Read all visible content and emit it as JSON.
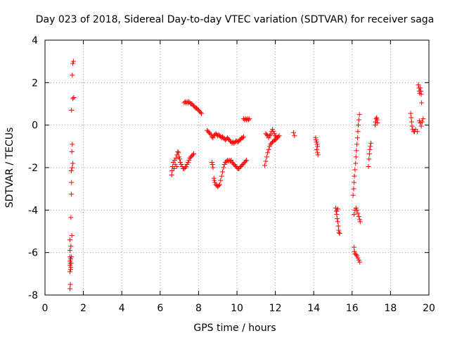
{
  "chart_data": {
    "type": "scatter",
    "title": "Day 023 of 2018, Sidereal Day-to-day VTEC variation (SDTVAR) for receiver saga",
    "xlabel": "GPS time / hours",
    "ylabel": "SDTVAR / TECUs",
    "xlim": [
      0,
      20
    ],
    "ylim": [
      -8,
      4
    ],
    "xticks": [
      0,
      2,
      4,
      6,
      8,
      10,
      12,
      14,
      16,
      18,
      20
    ],
    "yticks": [
      -8,
      -6,
      -4,
      -2,
      0,
      2,
      4
    ],
    "xtick_labels": [
      "0",
      "2",
      "4",
      "6",
      "8",
      "10",
      "12",
      "14",
      "16",
      "18",
      "20"
    ],
    "ytick_labels": [
      "-8",
      "-6",
      "-4",
      "-2",
      "0",
      "2",
      "4"
    ],
    "grid": true,
    "marker": "+",
    "series": [
      {
        "name": "SDTVAR",
        "color": "#ff0000",
        "points": [
          [
            1.3,
            -7.7
          ],
          [
            1.32,
            -7.5
          ],
          [
            1.3,
            -6.9
          ],
          [
            1.33,
            -6.8
          ],
          [
            1.35,
            -6.7
          ],
          [
            1.3,
            -6.6
          ],
          [
            1.32,
            -6.5
          ],
          [
            1.36,
            -6.5
          ],
          [
            1.3,
            -6.4
          ],
          [
            1.34,
            -6.3
          ],
          [
            1.3,
            -6.2
          ],
          [
            1.38,
            -6.2
          ],
          [
            1.3,
            -5.9
          ],
          [
            1.35,
            -5.7
          ],
          [
            1.3,
            -5.4
          ],
          [
            1.4,
            -5.2
          ],
          [
            1.35,
            -4.35
          ],
          [
            1.37,
            -3.25
          ],
          [
            1.38,
            -2.7
          ],
          [
            1.37,
            -2.15
          ],
          [
            1.42,
            -2.0
          ],
          [
            1.45,
            -1.8
          ],
          [
            1.4,
            -1.25
          ],
          [
            1.42,
            -0.9
          ],
          [
            1.38,
            0.7
          ],
          [
            1.45,
            1.25
          ],
          [
            1.5,
            1.3
          ],
          [
            1.42,
            2.35
          ],
          [
            1.45,
            2.9
          ],
          [
            1.48,
            3.0
          ],
          [
            6.6,
            -2.35
          ],
          [
            6.62,
            -2.15
          ],
          [
            6.65,
            -1.95
          ],
          [
            6.68,
            -1.75
          ],
          [
            6.72,
            -2.05
          ],
          [
            6.75,
            -1.65
          ],
          [
            6.78,
            -1.85
          ],
          [
            6.82,
            -1.55
          ],
          [
            6.85,
            -1.95
          ],
          [
            6.88,
            -1.4
          ],
          [
            6.92,
            -1.25
          ],
          [
            6.95,
            -1.3
          ],
          [
            6.98,
            -1.5
          ],
          [
            7.02,
            -1.6
          ],
          [
            7.05,
            -1.75
          ],
          [
            7.1,
            -1.85
          ],
          [
            7.15,
            -1.95
          ],
          [
            7.2,
            -2.05
          ],
          [
            7.25,
            -2.05
          ],
          [
            7.3,
            -2.0
          ],
          [
            7.35,
            -1.95
          ],
          [
            7.4,
            -1.85
          ],
          [
            7.45,
            -1.75
          ],
          [
            7.5,
            -1.65
          ],
          [
            7.55,
            -1.55
          ],
          [
            7.6,
            -1.5
          ],
          [
            7.65,
            -1.45
          ],
          [
            7.7,
            -1.4
          ],
          [
            7.75,
            -1.35
          ],
          [
            7.25,
            1.05
          ],
          [
            7.3,
            1.1
          ],
          [
            7.35,
            1.05
          ],
          [
            7.4,
            1.1
          ],
          [
            7.45,
            1.05
          ],
          [
            7.5,
            1.1
          ],
          [
            7.55,
            1.05
          ],
          [
            7.6,
            1.0
          ],
          [
            7.65,
            1.0
          ],
          [
            7.7,
            0.95
          ],
          [
            7.75,
            0.9
          ],
          [
            7.8,
            0.85
          ],
          [
            7.85,
            0.8
          ],
          [
            7.9,
            0.8
          ],
          [
            7.95,
            0.75
          ],
          [
            8.0,
            0.7
          ],
          [
            8.05,
            0.65
          ],
          [
            8.1,
            0.6
          ],
          [
            8.15,
            0.55
          ],
          [
            8.45,
            -0.25
          ],
          [
            8.5,
            -0.3
          ],
          [
            8.55,
            -0.35
          ],
          [
            8.6,
            -0.4
          ],
          [
            8.65,
            -0.45
          ],
          [
            8.7,
            -0.55
          ],
          [
            8.75,
            -0.6
          ],
          [
            8.8,
            -0.5
          ],
          [
            8.85,
            -0.45
          ],
          [
            8.9,
            -0.4
          ],
          [
            8.95,
            -0.45
          ],
          [
            9.0,
            -0.5
          ],
          [
            9.05,
            -0.45
          ],
          [
            9.1,
            -0.5
          ],
          [
            9.15,
            -0.55
          ],
          [
            9.2,
            -0.6
          ],
          [
            9.25,
            -0.55
          ],
          [
            9.3,
            -0.6
          ],
          [
            9.35,
            -0.65
          ],
          [
            9.4,
            -0.7
          ],
          [
            9.45,
            -0.65
          ],
          [
            9.5,
            -0.6
          ],
          [
            9.55,
            -0.65
          ],
          [
            9.6,
            -0.7
          ],
          [
            9.65,
            -0.75
          ],
          [
            9.7,
            -0.8
          ],
          [
            9.75,
            -0.85
          ],
          [
            9.8,
            -0.8
          ],
          [
            9.85,
            -0.85
          ],
          [
            9.9,
            -0.8
          ],
          [
            9.95,
            -0.75
          ],
          [
            10.0,
            -0.75
          ],
          [
            10.05,
            -0.8
          ],
          [
            10.1,
            -0.75
          ],
          [
            10.15,
            -0.7
          ],
          [
            10.2,
            -0.65
          ],
          [
            10.25,
            -0.6
          ],
          [
            10.3,
            -0.6
          ],
          [
            10.35,
            -0.55
          ],
          [
            8.7,
            -1.75
          ],
          [
            8.72,
            -1.85
          ],
          [
            8.75,
            -2.0
          ],
          [
            8.8,
            -2.5
          ],
          [
            8.82,
            -2.6
          ],
          [
            8.85,
            -2.7
          ],
          [
            8.9,
            -2.8
          ],
          [
            8.95,
            -2.85
          ],
          [
            9.0,
            -2.9
          ],
          [
            9.05,
            -2.85
          ],
          [
            9.1,
            -2.8
          ],
          [
            9.15,
            -2.6
          ],
          [
            9.2,
            -2.4
          ],
          [
            9.25,
            -2.2
          ],
          [
            9.3,
            -2.0
          ],
          [
            9.35,
            -1.85
          ],
          [
            9.4,
            -1.75
          ],
          [
            9.45,
            -1.7
          ],
          [
            9.5,
            -1.65
          ],
          [
            9.55,
            -1.7
          ],
          [
            9.6,
            -1.65
          ],
          [
            9.65,
            -1.7
          ],
          [
            9.7,
            -1.65
          ],
          [
            9.75,
            -1.75
          ],
          [
            9.8,
            -1.8
          ],
          [
            9.85,
            -1.85
          ],
          [
            9.9,
            -1.9
          ],
          [
            9.95,
            -1.95
          ],
          [
            10.0,
            -2.0
          ],
          [
            10.05,
            -2.05
          ],
          [
            10.1,
            -2.05
          ],
          [
            10.15,
            -2.0
          ],
          [
            10.2,
            -1.95
          ],
          [
            10.25,
            -1.9
          ],
          [
            10.3,
            -1.85
          ],
          [
            10.35,
            -1.8
          ],
          [
            10.4,
            -1.75
          ],
          [
            10.45,
            -1.7
          ],
          [
            10.5,
            -1.65
          ],
          [
            10.35,
            0.3
          ],
          [
            10.4,
            0.25
          ],
          [
            10.45,
            0.3
          ],
          [
            10.5,
            0.25
          ],
          [
            10.55,
            0.3
          ],
          [
            10.6,
            0.25
          ],
          [
            10.65,
            0.3
          ],
          [
            11.45,
            -1.9
          ],
          [
            11.5,
            -1.7
          ],
          [
            11.55,
            -1.5
          ],
          [
            11.6,
            -1.3
          ],
          [
            11.65,
            -1.15
          ],
          [
            11.7,
            -1.0
          ],
          [
            11.75,
            -0.9
          ],
          [
            11.8,
            -0.85
          ],
          [
            11.85,
            -0.8
          ],
          [
            11.9,
            -0.75
          ],
          [
            11.95,
            -0.7
          ],
          [
            12.0,
            -0.7
          ],
          [
            12.05,
            -0.65
          ],
          [
            12.1,
            -0.6
          ],
          [
            12.15,
            -0.55
          ],
          [
            12.2,
            -0.5
          ],
          [
            11.5,
            -0.4
          ],
          [
            11.55,
            -0.45
          ],
          [
            11.6,
            -0.5
          ],
          [
            11.65,
            -0.6
          ],
          [
            11.7,
            -0.5
          ],
          [
            11.75,
            -0.45
          ],
          [
            11.8,
            -0.3
          ],
          [
            11.85,
            -0.2
          ],
          [
            11.9,
            -0.3
          ],
          [
            11.95,
            -0.4
          ],
          [
            12.0,
            -0.5
          ],
          [
            12.05,
            -0.55
          ],
          [
            12.95,
            -0.35
          ],
          [
            13.0,
            -0.5
          ],
          [
            14.1,
            -0.6
          ],
          [
            14.12,
            -0.7
          ],
          [
            14.15,
            -0.8
          ],
          [
            14.18,
            -0.9
          ],
          [
            14.2,
            -1.0
          ],
          [
            14.15,
            -1.15
          ],
          [
            14.2,
            -1.3
          ],
          [
            14.22,
            -1.4
          ],
          [
            15.15,
            -3.9
          ],
          [
            15.17,
            -4.05
          ],
          [
            15.2,
            -4.2
          ],
          [
            15.22,
            -4.4
          ],
          [
            15.25,
            -4.55
          ],
          [
            15.28,
            -4.75
          ],
          [
            15.3,
            -4.95
          ],
          [
            15.32,
            -5.05
          ],
          [
            15.35,
            -5.1
          ],
          [
            15.2,
            -4.05
          ],
          [
            15.25,
            -3.95
          ],
          [
            16.05,
            -3.3
          ],
          [
            16.08,
            -3.0
          ],
          [
            16.1,
            -2.7
          ],
          [
            16.12,
            -2.4
          ],
          [
            16.15,
            -2.1
          ],
          [
            16.18,
            -1.8
          ],
          [
            16.2,
            -1.5
          ],
          [
            16.22,
            -1.2
          ],
          [
            16.25,
            -0.9
          ],
          [
            16.28,
            -0.6
          ],
          [
            16.3,
            -0.3
          ],
          [
            16.32,
            0.0
          ],
          [
            16.35,
            0.25
          ],
          [
            16.38,
            0.5
          ],
          [
            16.1,
            -4.2
          ],
          [
            16.15,
            -4.0
          ],
          [
            16.2,
            -3.9
          ],
          [
            16.25,
            -4.0
          ],
          [
            16.3,
            -4.15
          ],
          [
            16.35,
            -4.3
          ],
          [
            16.4,
            -4.45
          ],
          [
            16.42,
            -4.55
          ],
          [
            16.1,
            -5.75
          ],
          [
            16.12,
            -5.95
          ],
          [
            16.15,
            -6.05
          ],
          [
            16.2,
            -6.1
          ],
          [
            16.25,
            -6.15
          ],
          [
            16.3,
            -6.25
          ],
          [
            16.35,
            -6.35
          ],
          [
            16.4,
            -6.45
          ],
          [
            16.85,
            -1.95
          ],
          [
            16.88,
            -1.6
          ],
          [
            16.9,
            -1.35
          ],
          [
            16.92,
            -1.15
          ],
          [
            16.95,
            -1.0
          ],
          [
            16.98,
            -0.85
          ],
          [
            17.2,
            0.0
          ],
          [
            17.22,
            0.15
          ],
          [
            17.25,
            0.3
          ],
          [
            17.28,
            0.35
          ],
          [
            17.3,
            0.25
          ],
          [
            17.32,
            0.1
          ],
          [
            19.05,
            0.55
          ],
          [
            19.08,
            0.35
          ],
          [
            19.1,
            0.15
          ],
          [
            19.12,
            -0.05
          ],
          [
            19.15,
            -0.2
          ],
          [
            19.2,
            -0.3
          ],
          [
            19.25,
            -0.3
          ],
          [
            19.3,
            -0.2
          ],
          [
            19.4,
            -0.3
          ],
          [
            19.45,
            1.9
          ],
          [
            19.48,
            1.75
          ],
          [
            19.5,
            1.6
          ],
          [
            19.52,
            1.5
          ],
          [
            19.55,
            1.75
          ],
          [
            19.58,
            1.6
          ],
          [
            19.6,
            1.45
          ],
          [
            19.62,
            1.05
          ],
          [
            19.5,
            0.2
          ],
          [
            19.55,
            0.1
          ],
          [
            19.6,
            -0.05
          ],
          [
            19.65,
            0.15
          ],
          [
            19.7,
            0.3
          ]
        ]
      }
    ]
  }
}
